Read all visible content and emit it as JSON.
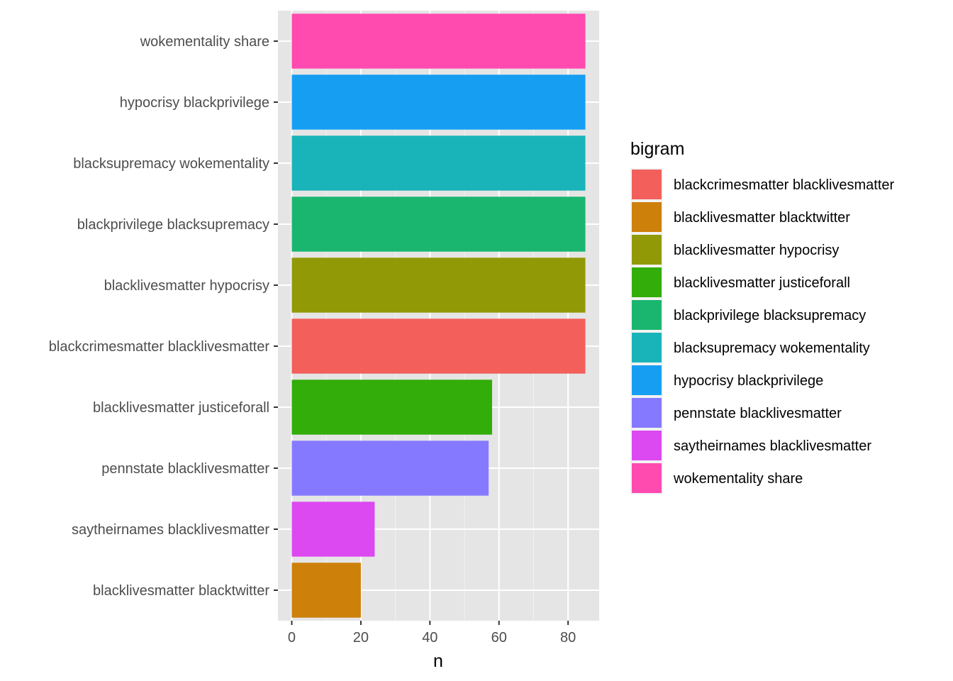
{
  "chart_data": {
    "type": "bar",
    "orientation": "horizontal",
    "categories": [
      "wokementality share",
      "hypocrisy blackprivilege",
      "blacksupremacy wokementality",
      "blackprivilege blacksupremacy",
      "blacklivesmatter hypocrisy",
      "blackcrimesmatter blacklivesmatter",
      "blacklivesmatter justiceforall",
      "pennstate blacklivesmatter",
      "saytheirnames blacklivesmatter",
      "blacklivesmatter blacktwitter"
    ],
    "values": [
      85,
      85,
      85,
      85,
      85,
      85,
      58,
      57,
      24,
      20
    ],
    "bar_colors": [
      "#FF4AB0",
      "#169FF2",
      "#19B4B9",
      "#1AB670",
      "#919A06",
      "#F35F5B",
      "#33AD09",
      "#857AFF",
      "#DC49F1",
      "#CD800A"
    ],
    "xlabel": "n",
    "ylabel": "",
    "xlim": [
      -4,
      89
    ],
    "xticks": [
      0,
      20,
      40,
      60,
      80
    ],
    "grid": true,
    "panel_background": "#E5E5E5",
    "legend": {
      "title": "bigram",
      "position": "right",
      "entries": [
        {
          "label": "blackcrimesmatter blacklivesmatter",
          "color": "#F35F5B"
        },
        {
          "label": "blacklivesmatter blacktwitter",
          "color": "#CD800A"
        },
        {
          "label": "blacklivesmatter hypocrisy",
          "color": "#919A06"
        },
        {
          "label": "blacklivesmatter justiceforall",
          "color": "#33AD09"
        },
        {
          "label": "blackprivilege blacksupremacy",
          "color": "#1AB670"
        },
        {
          "label": "blacksupremacy wokementality",
          "color": "#19B4B9"
        },
        {
          "label": "hypocrisy blackprivilege",
          "color": "#169FF2"
        },
        {
          "label": "pennstate blacklivesmatter",
          "color": "#857AFF"
        },
        {
          "label": "saytheirnames blacklivesmatter",
          "color": "#DC49F1"
        },
        {
          "label": "wokementality share",
          "color": "#FF4AB0"
        }
      ]
    }
  }
}
